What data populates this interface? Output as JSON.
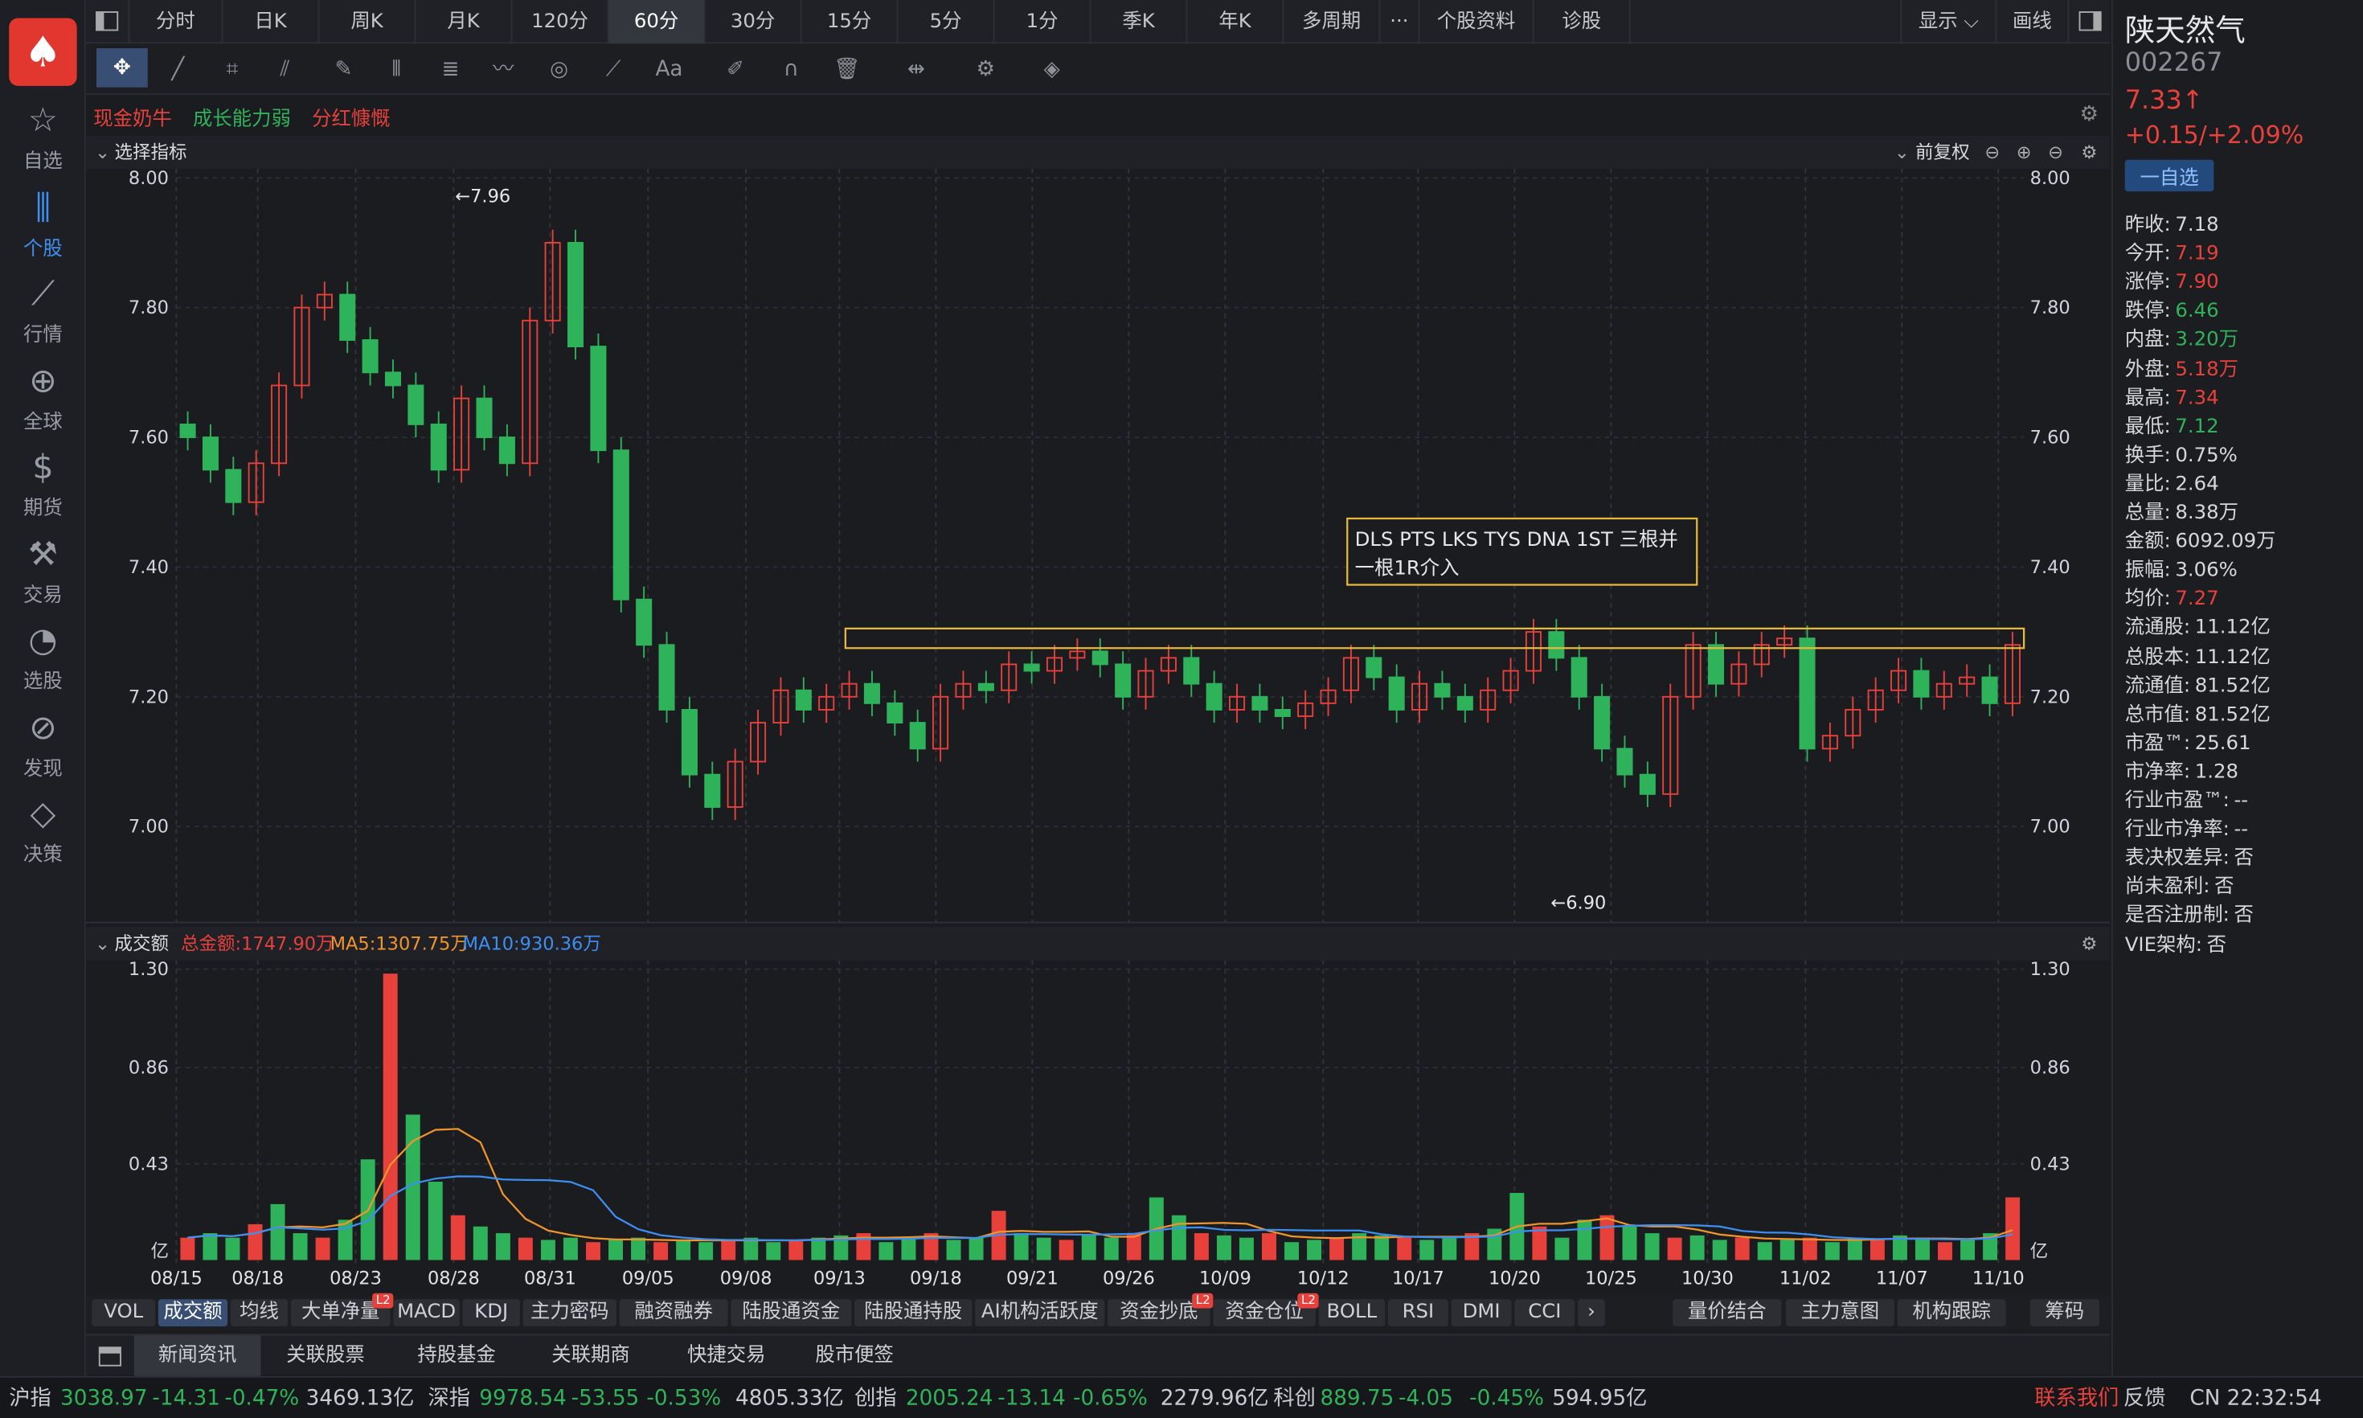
{
  "app": {
    "logo_icon": "playing-card-spade-icon"
  },
  "nav": [
    {
      "label": "自选",
      "icon": "star-icon"
    },
    {
      "label": "个股",
      "icon": "candlestick-icon",
      "active": true
    },
    {
      "label": "行情",
      "icon": "line-chart-icon"
    },
    {
      "label": "全球",
      "icon": "globe-icon"
    },
    {
      "label": "期货",
      "icon": "dollar-doc-icon"
    },
    {
      "label": "交易",
      "icon": "hammer-icon"
    },
    {
      "label": "选股",
      "icon": "trend-circle-icon"
    },
    {
      "label": "发现",
      "icon": "compass-icon"
    },
    {
      "label": "决策",
      "icon": "diamond-icon"
    }
  ],
  "tabs": [
    {
      "label": "分时"
    },
    {
      "label": "日K"
    },
    {
      "label": "周K"
    },
    {
      "label": "月K"
    },
    {
      "label": "120分"
    },
    {
      "label": "60分",
      "active": true
    },
    {
      "label": "30分"
    },
    {
      "label": "15分"
    },
    {
      "label": "5分"
    },
    {
      "label": "1分"
    },
    {
      "label": "季K"
    },
    {
      "label": "年K"
    },
    {
      "label": "多周期"
    },
    {
      "label": "···"
    },
    {
      "label": "个股资料"
    },
    {
      "label": "诊股"
    }
  ],
  "topright": {
    "display": "显示",
    "draw": "画线"
  },
  "tags": [
    {
      "text": "现金奶牛",
      "color": "#e8413b"
    },
    {
      "text": "成长能力弱",
      "color": "#2fb35a"
    },
    {
      "text": "分红慷慨",
      "color": "#e8413b"
    }
  ],
  "main": {
    "indicator_label": "选择指标",
    "adjust": "前复权",
    "max_label": "←7.96",
    "min_label": "←6.90",
    "annotation_line1": "DLS PTS LKS TYS DNA 1ST 三根并",
    "annotation_line2": "一根1R介入"
  },
  "vol": {
    "label": "成交额",
    "total": "总金额:1747.90万",
    "ma5": "MA5:1307.75万",
    "ma10": "MA10:930.36万",
    "unit": "亿"
  },
  "chart_data": {
    "type": "candlestick",
    "price_ylim": [
      6.88,
      8.0
    ],
    "price_ticks": [
      "8.00",
      "7.80",
      "7.60",
      "7.40",
      "7.20",
      "7.00"
    ],
    "vol_ticks": [
      "1.30",
      "0.86",
      "0.43"
    ],
    "x_labels": [
      "08/15",
      "08/18",
      "08/23",
      "08/28",
      "08/31",
      "09/05",
      "09/08",
      "09/13",
      "09/18",
      "09/21",
      "09/26",
      "10/09",
      "10/12",
      "10/17",
      "10/20",
      "10/25",
      "10/30",
      "11/02",
      "11/07",
      "11/10"
    ],
    "price_path": [
      7.62,
      7.6,
      7.55,
      7.5,
      7.56,
      7.68,
      7.8,
      7.82,
      7.75,
      7.7,
      7.68,
      7.62,
      7.55,
      7.66,
      7.6,
      7.56,
      7.78,
      7.9,
      7.74,
      7.58,
      7.35,
      7.28,
      7.18,
      7.08,
      7.03,
      7.1,
      7.16,
      7.21,
      7.18,
      7.2,
      7.22,
      7.19,
      7.16,
      7.12,
      7.2,
      7.22,
      7.21,
      7.25,
      7.24,
      7.26,
      7.27,
      7.25,
      7.2,
      7.24,
      7.26,
      7.22,
      7.18,
      7.2,
      7.18,
      7.17,
      7.19,
      7.21,
      7.26,
      7.23,
      7.18,
      7.22,
      7.2,
      7.18,
      7.21,
      7.24,
      7.3,
      7.26,
      7.2,
      7.12,
      7.08,
      7.05,
      7.2,
      7.28,
      7.22,
      7.25,
      7.28,
      7.29,
      7.12,
      7.14,
      7.18,
      7.21,
      7.24,
      7.2,
      7.22,
      7.23,
      7.19,
      7.28
    ],
    "vol_path": [
      0.1,
      0.12,
      0.1,
      0.16,
      0.25,
      0.12,
      0.1,
      0.18,
      0.45,
      1.28,
      0.65,
      0.35,
      0.2,
      0.15,
      0.12,
      0.1,
      0.09,
      0.1,
      0.08,
      0.09,
      0.1,
      0.08,
      0.09,
      0.08,
      0.09,
      0.1,
      0.08,
      0.09,
      0.1,
      0.11,
      0.12,
      0.08,
      0.1,
      0.12,
      0.09,
      0.1,
      0.22,
      0.12,
      0.1,
      0.09,
      0.11,
      0.1,
      0.12,
      0.28,
      0.2,
      0.12,
      0.11,
      0.1,
      0.12,
      0.08,
      0.09,
      0.1,
      0.12,
      0.11,
      0.1,
      0.09,
      0.1,
      0.12,
      0.14,
      0.3,
      0.15,
      0.1,
      0.18,
      0.2,
      0.15,
      0.12,
      0.1,
      0.11,
      0.09,
      0.1,
      0.08,
      0.09,
      0.1,
      0.08,
      0.1,
      0.09,
      0.11,
      0.1,
      0.08,
      0.09,
      0.12,
      0.28
    ]
  },
  "indtabs": [
    {
      "label": "VOL"
    },
    {
      "label": "成交额",
      "active": true
    },
    {
      "label": "均线"
    },
    {
      "label": "大单净量"
    },
    {
      "label": "MACD"
    },
    {
      "label": "KDJ"
    },
    {
      "label": "主力密码"
    },
    {
      "label": "融资融券"
    },
    {
      "label": "陆股通资金"
    },
    {
      "label": "陆股通持股"
    },
    {
      "label": "AI机构活跃度"
    },
    {
      "label": "资金抄底"
    },
    {
      "label": "资金仓位"
    },
    {
      "label": "BOLL"
    },
    {
      "label": "RSI"
    },
    {
      "label": "DMI"
    },
    {
      "label": "CCI"
    },
    {
      "label": "›"
    }
  ],
  "indtabs_right": [
    {
      "label": "量价结合"
    },
    {
      "label": "主力意图"
    },
    {
      "label": "机构跟踪"
    },
    {
      "label": "筹码"
    }
  ],
  "badge_l2": "L2",
  "news": [
    {
      "label": "新闻资讯",
      "active": true
    },
    {
      "label": "关联股票"
    },
    {
      "label": "持股基金"
    },
    {
      "label": "关联期商"
    },
    {
      "label": "快捷交易"
    },
    {
      "label": "股市便签"
    }
  ],
  "status": {
    "sh_label": "沪指",
    "sh_val": "3038.97",
    "sh_chg": "-14.31",
    "sh_pct": "-0.47%",
    "sh_amt": "3469.13亿",
    "sz_label": "深指",
    "sz_val": "9978.54",
    "sz_chg": "-53.55",
    "sz_pct": "-0.53%",
    "sz_amt": "4805.33亿",
    "cy_label": "创指",
    "cy_val": "2005.24",
    "cy_chg": "-13.14",
    "cy_pct": "-0.65%",
    "cy_amt": "2279.96亿",
    "kc_label": "科创",
    "kc_val": "889.75",
    "kc_chg": "-4.05",
    "kc_pct": "-0.45%",
    "kc_amt": "594.95亿",
    "contact": "联系我们",
    "feedback": "反馈",
    "clock": "CN 22:32:54"
  },
  "stock": {
    "name": "陕天然气",
    "code": "002267",
    "price": "7.33↑",
    "change": "+0.15/+2.09%",
    "watch_btn": "一自选"
  },
  "quote": [
    {
      "k": "昨收:",
      "v": "7.18",
      "c": "#d6d8dc"
    },
    {
      "k": "今开:",
      "v": "7.19",
      "c": "#e8413b"
    },
    {
      "k": "涨停:",
      "v": "7.90",
      "c": "#e8413b"
    },
    {
      "k": "跌停:",
      "v": "6.46",
      "c": "#2fb35a"
    },
    {
      "k": "内盘:",
      "v": "3.20万",
      "c": "#2fb35a"
    },
    {
      "k": "外盘:",
      "v": "5.18万",
      "c": "#e8413b"
    },
    {
      "k": "最高:",
      "v": "7.34",
      "c": "#e8413b"
    },
    {
      "k": "最低:",
      "v": "7.12",
      "c": "#2fb35a"
    },
    {
      "k": "换手:",
      "v": "0.75%",
      "c": "#d6d8dc"
    },
    {
      "k": "量比:",
      "v": "2.64",
      "c": "#d6d8dc"
    },
    {
      "k": "总量:",
      "v": "8.38万",
      "c": "#d6d8dc"
    },
    {
      "k": "金额:",
      "v": "6092.09万",
      "c": "#d6d8dc"
    },
    {
      "k": "振幅:",
      "v": "3.06%",
      "c": "#d6d8dc"
    },
    {
      "k": "均价:",
      "v": "7.27",
      "c": "#e8413b"
    },
    {
      "k": "流通股:",
      "v": "11.12亿",
      "c": "#d6d8dc"
    },
    {
      "k": "总股本:",
      "v": "11.12亿",
      "c": "#d6d8dc"
    },
    {
      "k": "流通值:",
      "v": "81.52亿",
      "c": "#d6d8dc"
    },
    {
      "k": "总市值:",
      "v": "81.52亿",
      "c": "#d6d8dc"
    },
    {
      "k": "市盈™:",
      "v": "25.61",
      "c": "#d6d8dc"
    },
    {
      "k": "市净率:",
      "v": "1.28",
      "c": "#d6d8dc"
    },
    {
      "k": "行业市盈™:",
      "v": "--",
      "c": "#d6d8dc"
    },
    {
      "k": "行业市净率:",
      "v": "--",
      "c": "#d6d8dc"
    },
    {
      "k": "表决权差异:",
      "v": "否",
      "c": "#d6d8dc"
    },
    {
      "k": "尚未盈利:",
      "v": "否",
      "c": "#d6d8dc"
    },
    {
      "k": "是否注册制:",
      "v": "否",
      "c": "#d6d8dc"
    },
    {
      "k": "VIE架构:",
      "v": "否",
      "c": "#d6d8dc"
    }
  ],
  "colors": {
    "up": "#e8413b",
    "down": "#2fb35a",
    "ma5": "#f0952b",
    "ma10": "#3d8ff2",
    "annotation": "#e9b93a"
  }
}
